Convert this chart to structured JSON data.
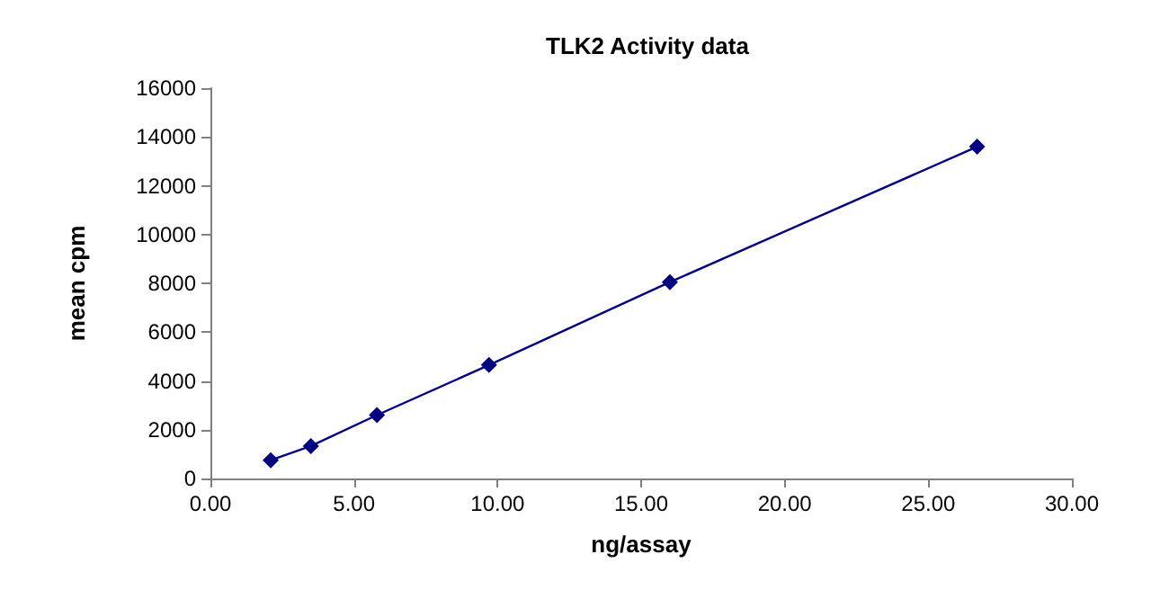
{
  "chart_data": {
    "type": "line",
    "title": "TLK2 Activity data",
    "xlabel": "ng/assay",
    "ylabel": "mean cpm",
    "x": [
      2.1,
      3.5,
      5.8,
      9.7,
      16.0,
      26.7
    ],
    "series": [
      {
        "color": "#000080",
        "values": [
          750,
          1330,
          2600,
          4650,
          8050,
          13600
        ]
      }
    ],
    "xlim": [
      0,
      30
    ],
    "xticks": [
      {
        "value": 0,
        "label": "0.00"
      },
      {
        "value": 5,
        "label": "5.00"
      },
      {
        "value": 10,
        "label": "10.00"
      },
      {
        "value": 15,
        "label": "15.00"
      },
      {
        "value": 20,
        "label": "20.00"
      },
      {
        "value": 25,
        "label": "25.00"
      },
      {
        "value": 30,
        "label": "30.00"
      }
    ],
    "ylim": [
      0,
      16000
    ],
    "yticks": [
      0,
      2000,
      4000,
      6000,
      8000,
      10000,
      12000,
      14000,
      16000
    ],
    "grid": false,
    "marker": "diamond",
    "line_style": "solid"
  }
}
